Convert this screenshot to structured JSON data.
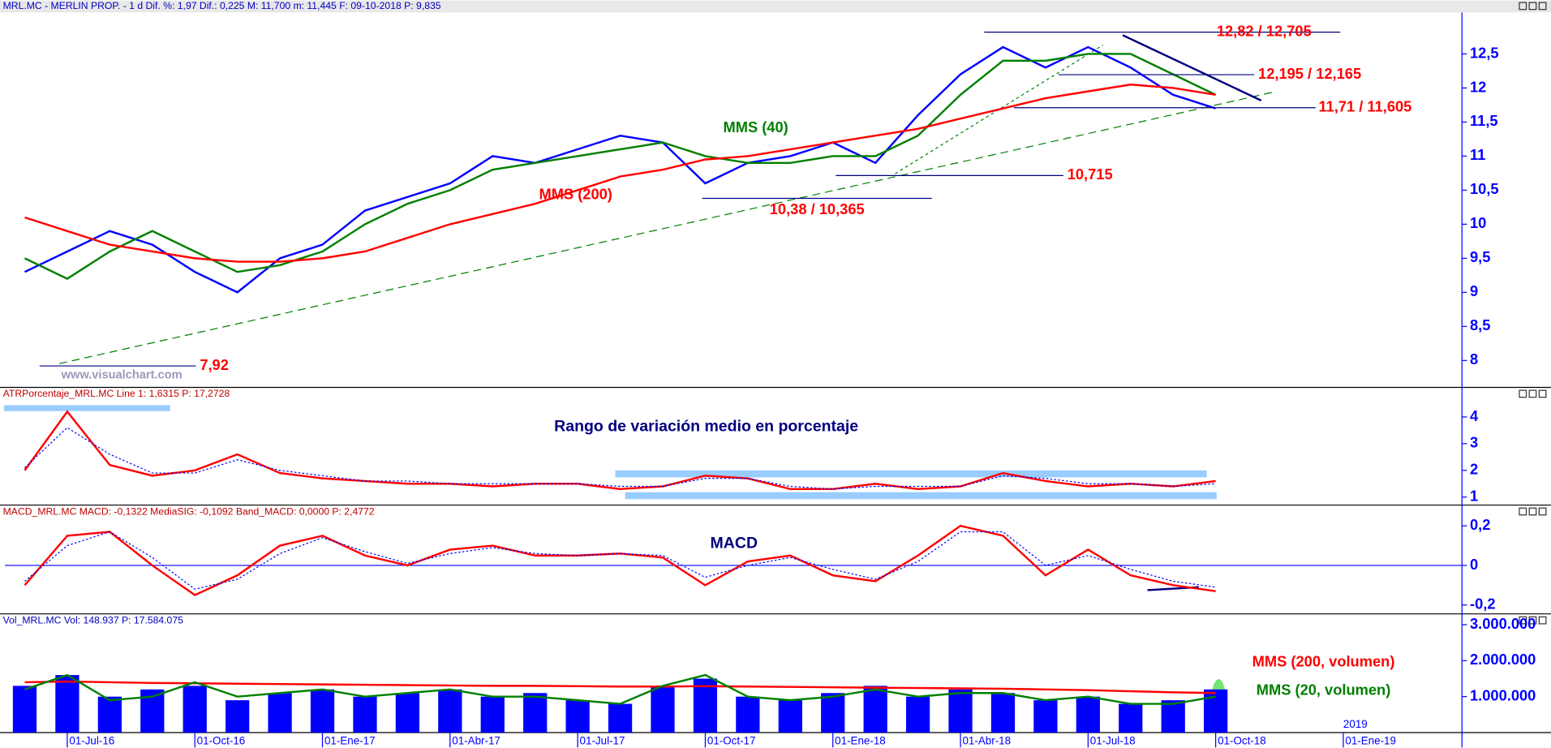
{
  "chart_data": [
    {
      "type": "line",
      "header": "MRL.MC - MERLIN PROP. -  1 d  Dif. %: 1,97  Dif.: 0,225  M: 11,700  m: 11,445  F: 09-10-2018  P: 9,835",
      "watermark": "www.visualchart.com",
      "ylim": [
        7.62,
        13.08
      ],
      "yticks": [
        8,
        {
          "value": 8.5,
          "label": "8,5"
        },
        9,
        {
          "value": 9.5,
          "label": "9,5"
        },
        10,
        {
          "value": 10.5,
          "label": "10,5"
        },
        11,
        {
          "value": 11.5,
          "label": "11,5"
        },
        12,
        {
          "value": 12.5,
          "label": "12,5"
        }
      ],
      "series": [
        {
          "color": "#0000ff",
          "values": [
            9.3,
            9.6,
            9.9,
            9.7,
            9.3,
            9.0,
            9.5,
            9.7,
            10.2,
            10.4,
            10.6,
            11.0,
            10.9,
            11.1,
            11.3,
            11.2,
            10.6,
            10.9,
            11.0,
            11.2,
            10.9,
            11.6,
            12.2,
            12.6,
            12.3,
            12.6,
            12.3,
            11.9,
            11.7,
            null,
            null,
            null
          ]
        },
        {
          "name": "MMS (40)",
          "color": "#008000",
          "values": [
            9.5,
            9.2,
            9.6,
            9.9,
            9.6,
            9.3,
            9.4,
            9.6,
            10.0,
            10.3,
            10.5,
            10.8,
            10.9,
            11.0,
            11.1,
            11.2,
            11.0,
            10.9,
            10.9,
            11.0,
            11.0,
            11.3,
            11.9,
            12.4,
            12.4,
            12.5,
            12.5,
            12.2,
            11.9,
            null,
            null,
            null
          ]
        },
        {
          "name": "MMS (200)",
          "color": "#ff0000",
          "values": [
            10.1,
            9.9,
            9.7,
            9.6,
            9.5,
            9.45,
            9.45,
            9.5,
            9.6,
            9.8,
            10.0,
            10.15,
            10.3,
            10.5,
            10.7,
            10.8,
            10.95,
            11.0,
            11.1,
            11.2,
            11.3,
            11.4,
            11.55,
            11.7,
            11.85,
            11.95,
            12.05,
            12.0,
            11.9,
            null,
            null,
            null
          ]
        }
      ],
      "levels": [
        {
          "value": 12.82,
          "label": "12,82 / 12,705"
        },
        {
          "value": 12.195,
          "label": "12,195 / 12,165"
        },
        {
          "value": 11.71,
          "label": "11,71 / 11,605"
        },
        {
          "value": 10.715,
          "label": "10,715"
        },
        {
          "value": 10.38,
          "label": "10,38 / 10,365"
        },
        {
          "value": 7.92,
          "label": "7,92"
        }
      ]
    },
    {
      "type": "line",
      "header": "ATRPorcentaje_MRL.MC  Line 1: 1,6315  P: 17,2728",
      "title": "Rango de variación medio en porcentaje",
      "ylim": [
        0.7,
        4.96
      ],
      "yticks": [
        1,
        2,
        3,
        4
      ],
      "series": [
        {
          "color": "#ff0000",
          "values": [
            2.0,
            4.2,
            2.2,
            1.8,
            2.0,
            2.6,
            1.9,
            1.7,
            1.6,
            1.5,
            1.5,
            1.4,
            1.5,
            1.5,
            1.3,
            1.4,
            1.8,
            1.7,
            1.3,
            1.3,
            1.5,
            1.3,
            1.4,
            1.9,
            1.6,
            1.4,
            1.5,
            1.4,
            1.6,
            null,
            null,
            null
          ]
        },
        {
          "color": "#0000ff",
          "dashed": true,
          "values": [
            2.1,
            3.6,
            2.6,
            1.9,
            1.9,
            2.4,
            2.0,
            1.8,
            1.6,
            1.6,
            1.5,
            1.5,
            1.5,
            1.5,
            1.4,
            1.4,
            1.7,
            1.7,
            1.4,
            1.3,
            1.4,
            1.4,
            1.4,
            1.8,
            1.7,
            1.5,
            1.5,
            1.4,
            1.5,
            null,
            null,
            null
          ]
        }
      ]
    },
    {
      "type": "line",
      "header": "MACD_MRL.MC  MACD: -0,1322  MediaSIG: -0,1092  Band_MACD: 0,0000  P: 2,4772",
      "title": "MACD",
      "ylim": [
        -0.245,
        0.28
      ],
      "yticks": [
        {
          "value": -0.2,
          "label": "-0,2"
        },
        0,
        {
          "value": 0.2,
          "label": "0,2"
        }
      ],
      "series": [
        {
          "color": "#ff0000",
          "values": [
            -0.1,
            0.15,
            0.17,
            0.0,
            -0.15,
            -0.05,
            0.1,
            0.15,
            0.05,
            0.0,
            0.08,
            0.1,
            0.05,
            0.05,
            0.06,
            0.04,
            -0.1,
            0.02,
            0.05,
            -0.05,
            -0.08,
            0.05,
            0.2,
            0.15,
            -0.05,
            0.08,
            -0.05,
            -0.1,
            -0.13,
            null,
            null,
            null
          ]
        },
        {
          "color": "#0000ff",
          "dashed": true,
          "values": [
            -0.08,
            0.1,
            0.17,
            0.04,
            -0.12,
            -0.07,
            0.06,
            0.14,
            0.07,
            0.01,
            0.06,
            0.09,
            0.06,
            0.05,
            0.06,
            0.05,
            -0.06,
            0.0,
            0.04,
            -0.02,
            -0.07,
            0.02,
            0.17,
            0.17,
            0.0,
            0.05,
            -0.02,
            -0.08,
            -0.11,
            null,
            null,
            null
          ]
        }
      ]
    },
    {
      "type": "bar",
      "header": "Vol_MRL.MC  Vol: 148.937  P: 17.584.075",
      "color": "#0000ff",
      "categories": [
        null,
        "01-Jul-16",
        null,
        null,
        "01-Oct-16",
        null,
        null,
        "01-Ene-17",
        null,
        null,
        "01-Abr-17",
        null,
        null,
        "01-Jul-17",
        null,
        null,
        "01-Oct-17",
        null,
        null,
        "01-Ene-18",
        null,
        null,
        "01-Abr-18",
        null,
        null,
        "01-Jul-18",
        null,
        null,
        "01-Oct-18",
        null,
        null,
        "01-Ene-19"
      ],
      "year_label": "2019",
      "ylim": [
        0,
        3300000
      ],
      "yticks": [
        {
          "value": 1000000,
          "label": "1.000.000"
        },
        {
          "value": 2000000,
          "label": "2.000.000"
        },
        {
          "value": 3000000,
          "label": "3.000.000"
        }
      ],
      "values": [
        1300000,
        1600000,
        1000000,
        1200000,
        1300000,
        900000,
        1100000,
        1200000,
        1000000,
        1100000,
        1200000,
        1000000,
        1100000,
        900000,
        800000,
        1300000,
        1500000,
        1000000,
        900000,
        1100000,
        1300000,
        1000000,
        1200000,
        1100000,
        900000,
        1000000,
        800000,
        900000,
        1200000,
        null,
        null,
        null
      ],
      "series": [
        {
          "name": "MMS (200, volumen)",
          "color": "#ff0000",
          "values": [
            1400000,
            1420000,
            1400000,
            1380000,
            1370000,
            1360000,
            1350000,
            1340000,
            1330000,
            1320000,
            1310000,
            1300000,
            1300000,
            1290000,
            1280000,
            1280000,
            1290000,
            1280000,
            1270000,
            1260000,
            1250000,
            1240000,
            1230000,
            1220000,
            1200000,
            1180000,
            1150000,
            1120000,
            1100000,
            null,
            null,
            null
          ]
        },
        {
          "name": "MMS (20, volumen)",
          "color": "#008000",
          "values": [
            1200000,
            1600000,
            900000,
            1000000,
            1400000,
            1000000,
            1100000,
            1200000,
            1000000,
            1100000,
            1200000,
            1000000,
            1000000,
            900000,
            800000,
            1300000,
            1600000,
            1000000,
            900000,
            1000000,
            1200000,
            1000000,
            1100000,
            1100000,
            900000,
            1000000,
            800000,
            800000,
            1000000,
            null,
            null,
            null
          ]
        }
      ]
    }
  ]
}
